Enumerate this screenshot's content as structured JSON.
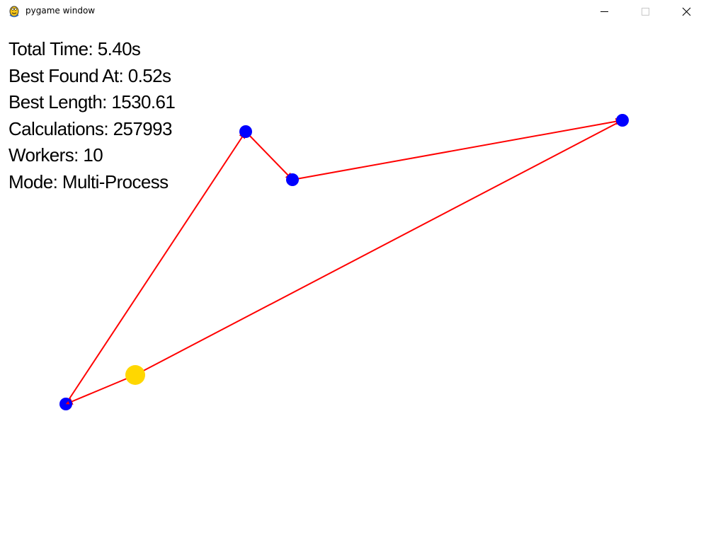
{
  "window": {
    "title": "pygame window",
    "icon": "pygame-snake-icon",
    "controls": {
      "minimize_icon": "minimize-icon",
      "maximize_icon": "maximize-icon",
      "close_icon": "close-icon"
    }
  },
  "stats": {
    "total_time": "Total Time: 5.40s",
    "best_found_at": "Best Found At: 0.52s",
    "best_length": "Best Length: 1530.61",
    "calculations": "Calculations: 257993",
    "workers": "Workers: 10",
    "mode": "Mode: Multi-Process"
  },
  "colors": {
    "city": "#0000ff",
    "start_city": "#ffd700",
    "route": "#ff0000",
    "text": "#000000",
    "background": "#ffffff"
  }
}
